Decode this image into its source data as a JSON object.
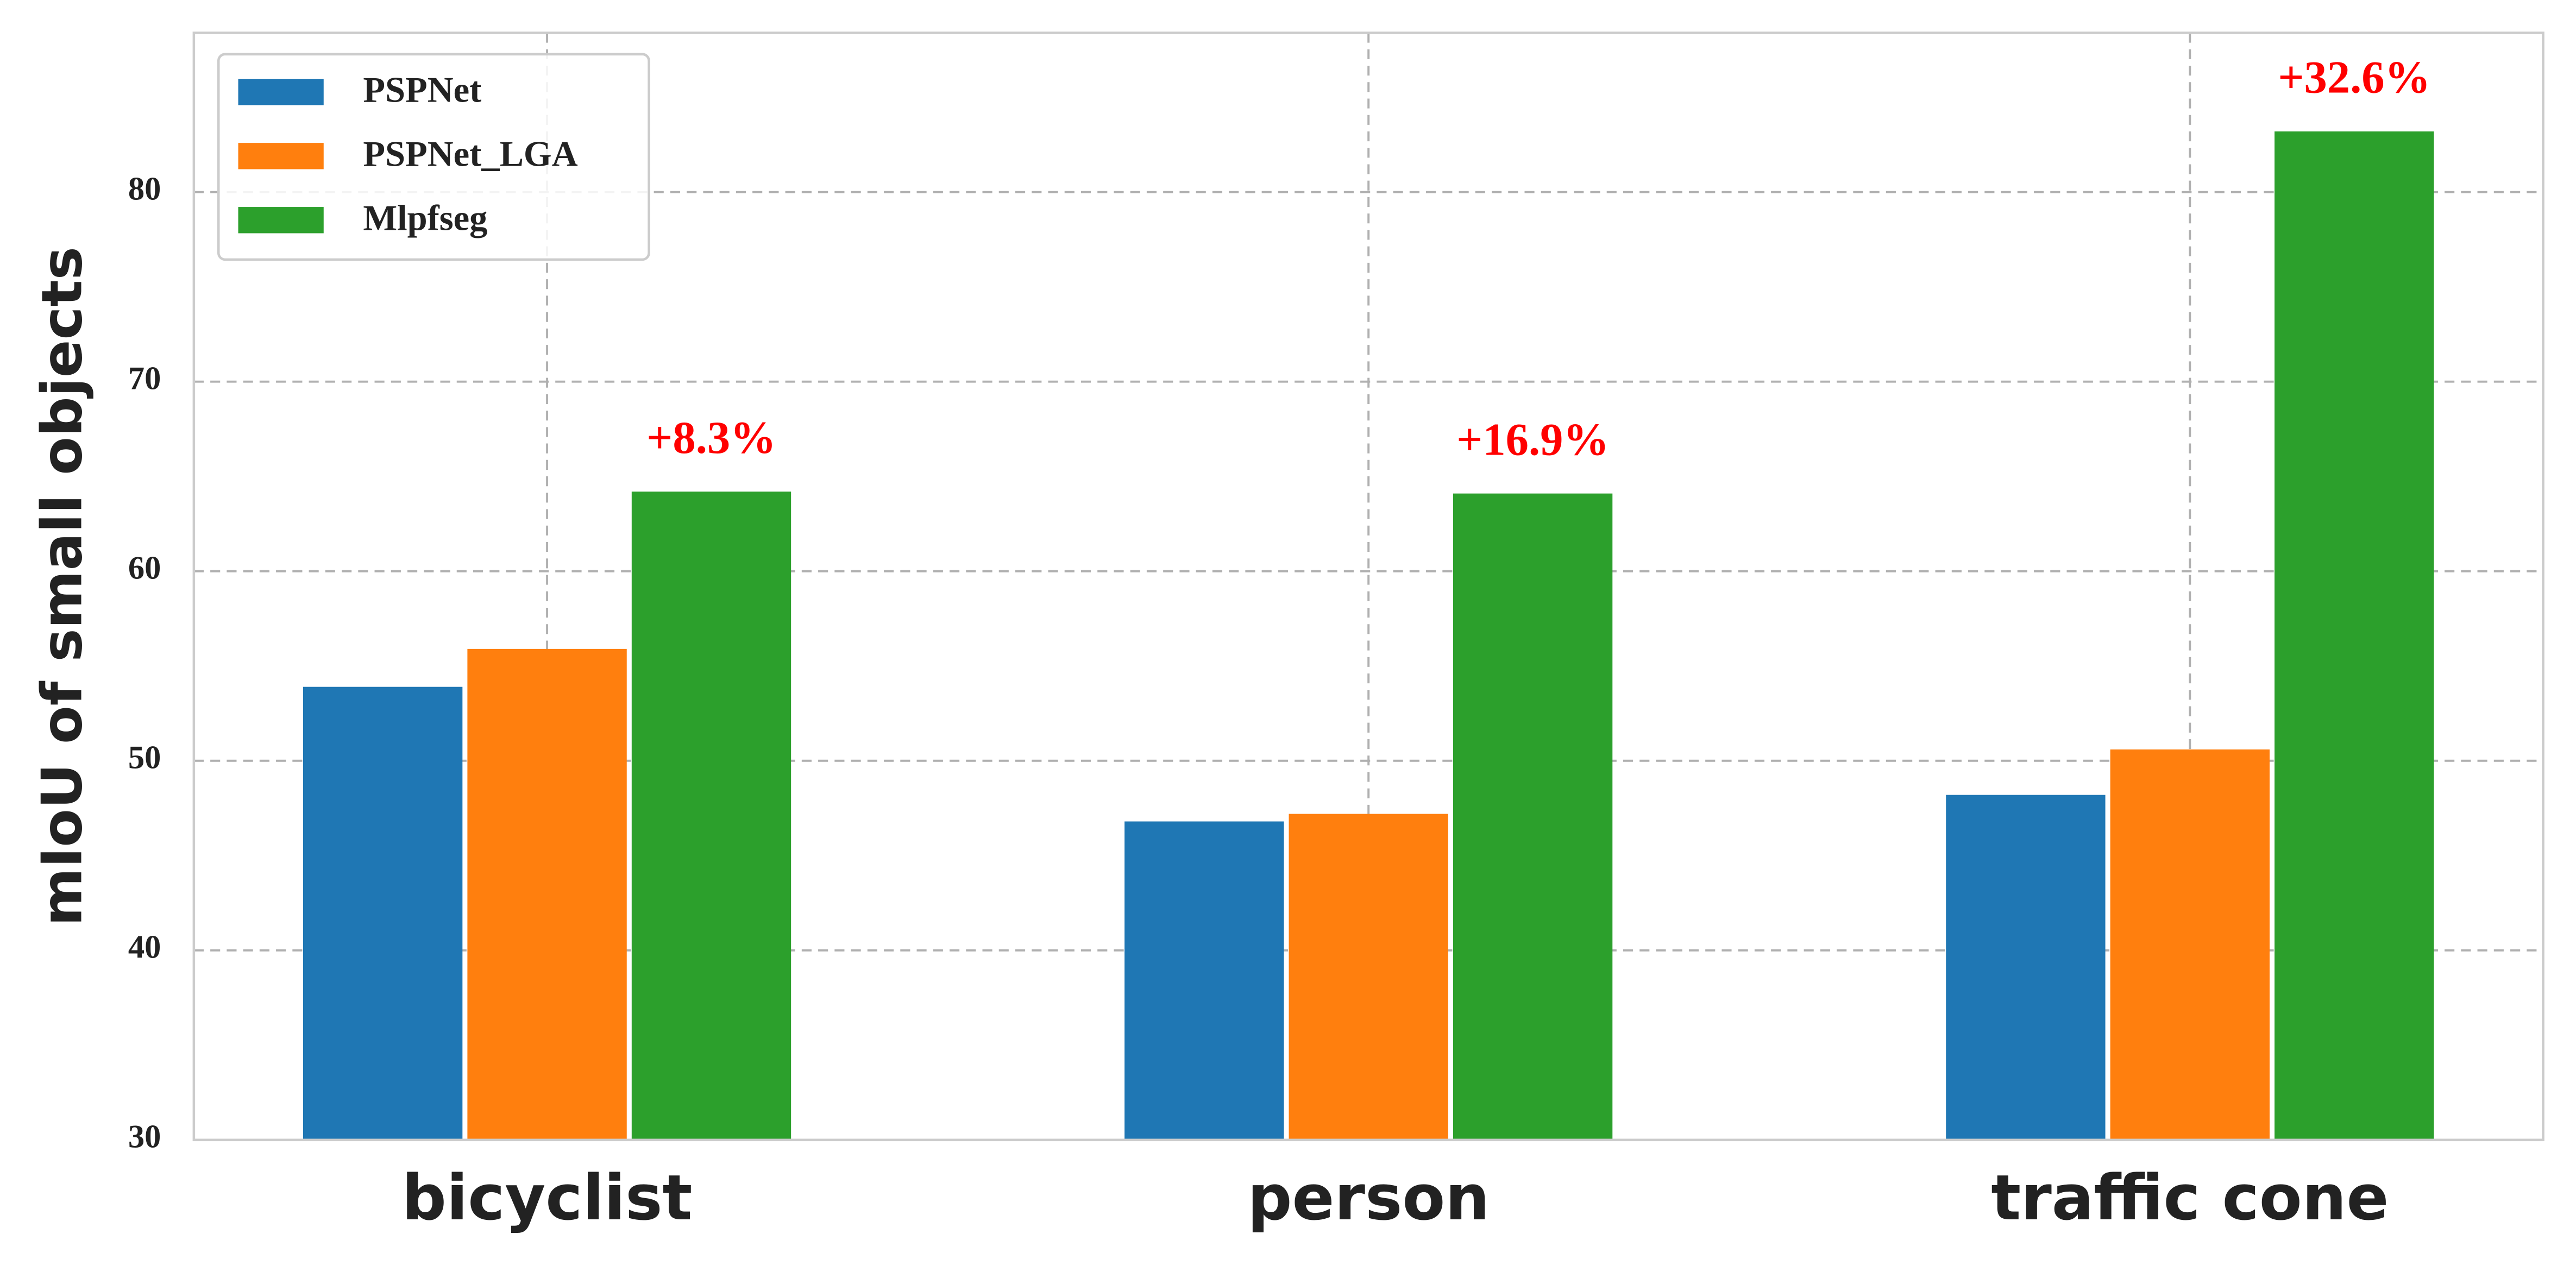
{
  "chart_data": {
    "type": "bar",
    "ylabel": "mIoU of small objects",
    "categories": [
      "bicyclist",
      "person",
      "traffic cone"
    ],
    "series": [
      {
        "name": "PSPNet",
        "color": "#1f77b4",
        "values": [
          53.9,
          46.8,
          48.2
        ]
      },
      {
        "name": "PSPNet_LGA",
        "color": "#ff7f0e",
        "values": [
          55.9,
          47.2,
          50.6
        ]
      },
      {
        "name": "Mlpfseg",
        "color": "#2ca02c",
        "values": [
          64.2,
          64.1,
          83.2
        ]
      }
    ],
    "annotations": [
      "+8.3%",
      "+16.9%",
      "+32.6%"
    ],
    "annotation_color": "#ff0000",
    "ylim": [
      30,
      88.4
    ],
    "yticks": [
      30,
      40,
      50,
      60,
      70,
      80
    ],
    "grid": true,
    "legend": "upper left"
  }
}
